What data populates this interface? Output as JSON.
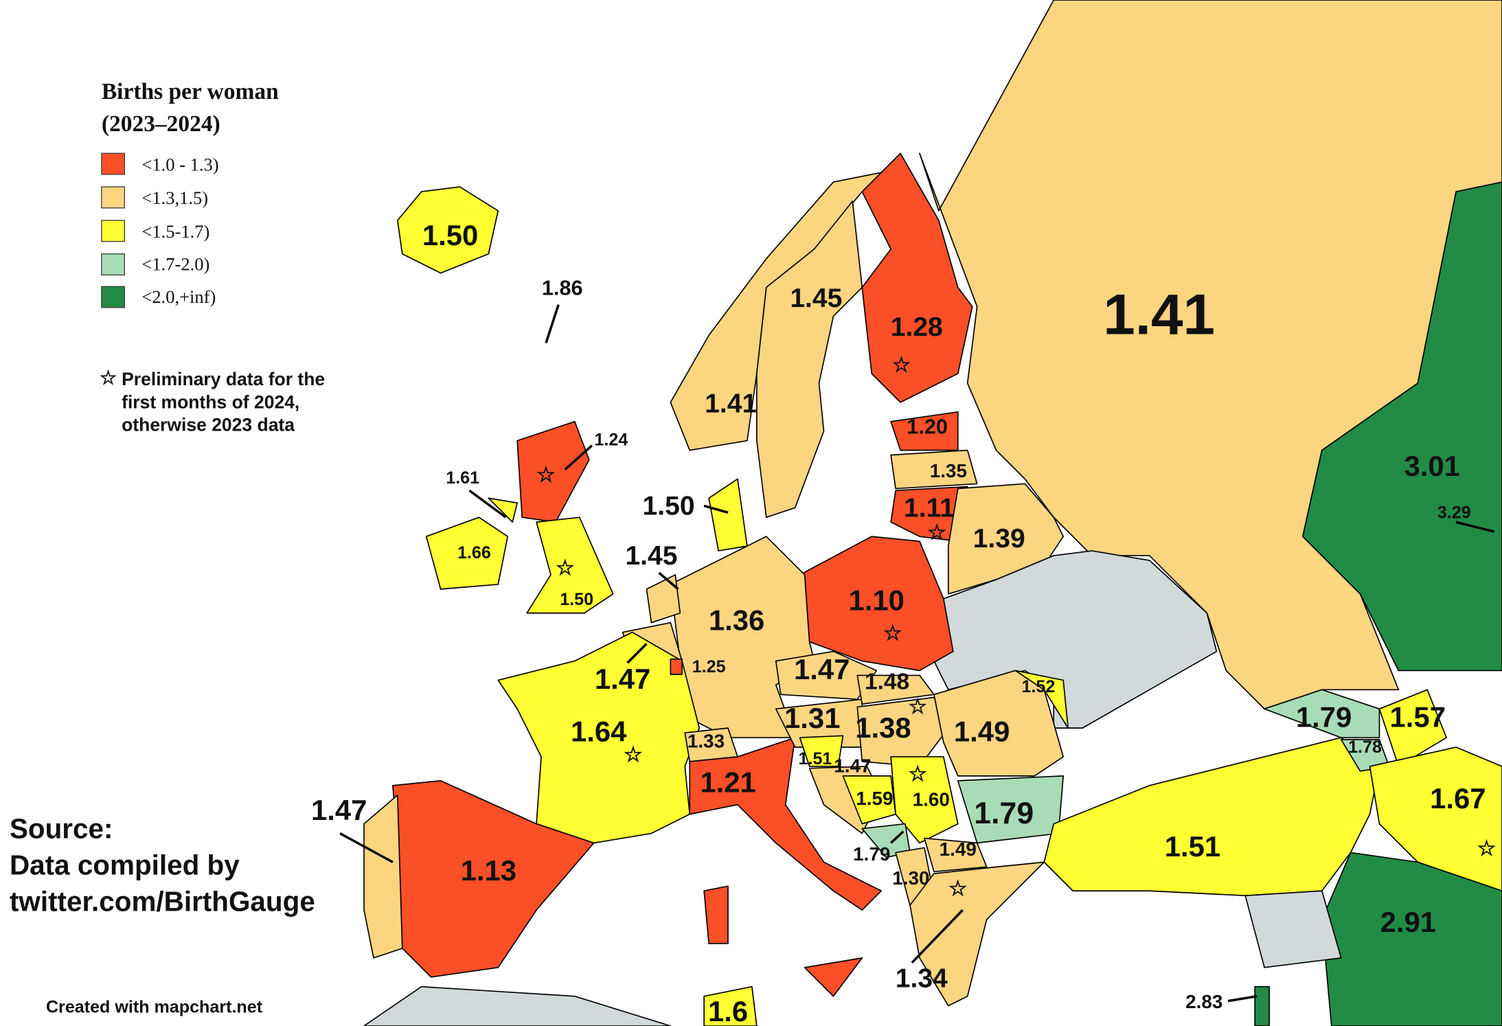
{
  "legend": {
    "title": [
      "Births per woman",
      "(2023–2024)"
    ],
    "items": [
      "<1.0 - 1.3)",
      "<1.3,1.5)",
      "<1.5-1.7)",
      "<1.7-2.0)",
      "<2.0,+inf)"
    ]
  },
  "note": [
    "Preliminary data for the",
    "first months of 2024,",
    "otherwise 2023 data"
  ],
  "source": [
    "Source:",
    "Data compiled by",
    "twitter.com/BirthGauge"
  ],
  "credit": "Created with mapchart.net",
  "labels": [
    "1.50",
    "1.86",
    "1.24",
    "1.61",
    "1.66",
    "1.50",
    "1.50",
    "1.45",
    "1.41",
    "1.45",
    "1.28",
    "1.41",
    "1.20",
    "1.35",
    "1.11",
    "1.39",
    "1.10",
    "1.36",
    "1.25",
    "1.47",
    "1.64",
    "1.47",
    "1.48",
    "1.31",
    "1.38",
    "1.49",
    "1.52",
    "1.33",
    "1.21",
    "1.51",
    "1.47",
    "1.59",
    "1.60",
    "1.79",
    "1.79",
    "1.49",
    "1.30",
    "1.34",
    "1.47",
    "1.13",
    "1.79",
    "1.78",
    "1.57",
    "1.67",
    "1.51",
    "3.01",
    "3.29",
    "2.91",
    "2.83",
    "1.6"
  ]
}
